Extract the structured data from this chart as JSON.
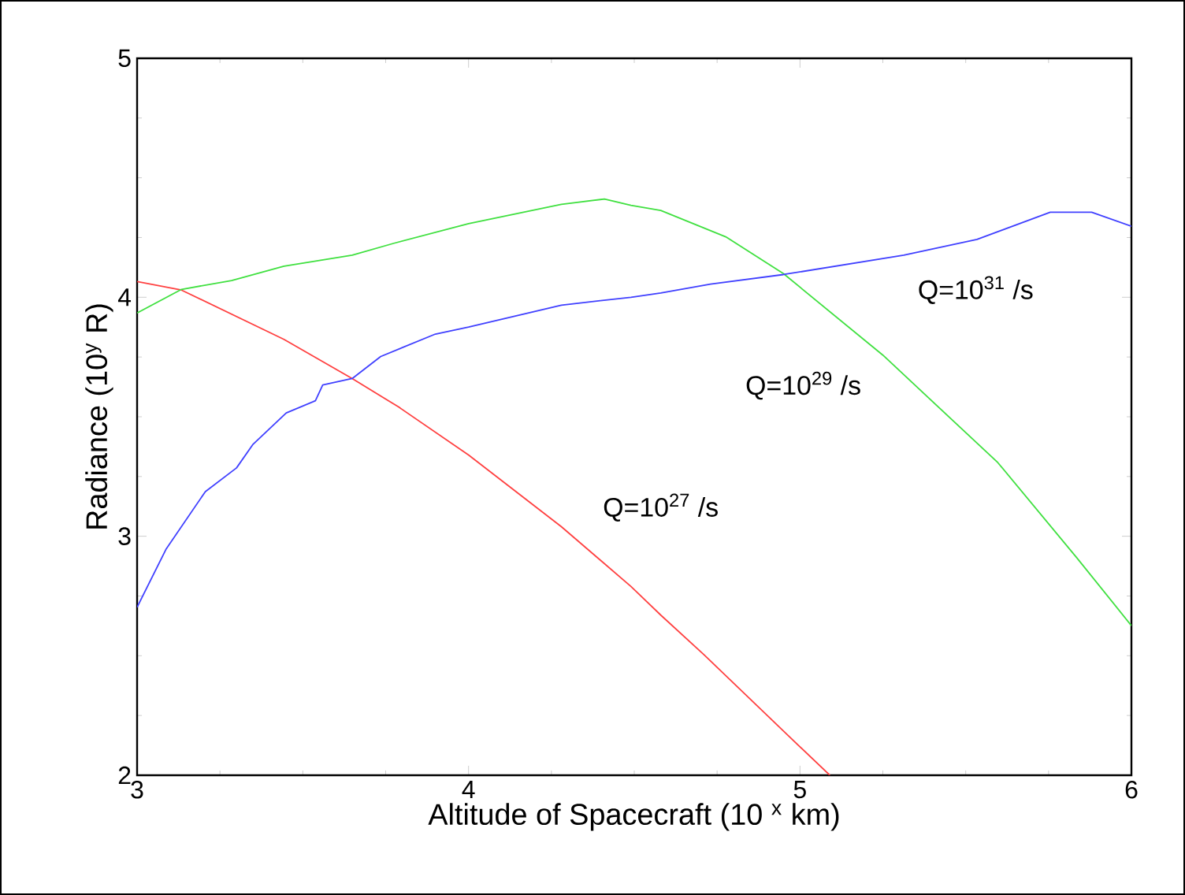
{
  "chart_data": {
    "type": "line",
    "xlabel": "Altitude of Spacecraft (10 $^{x}$ km)",
    "ylabel": "Radiance (10$^{y}$ R)",
    "xlim": [
      3,
      6
    ],
    "ylim": [
      2,
      5
    ],
    "xticks": [
      3,
      4,
      5,
      6
    ],
    "yticks": [
      2,
      3,
      4,
      5
    ],
    "grid": false,
    "series": [
      {
        "name": "Q=10$^{27}$ /s",
        "color": "#ff4040",
        "x": [
          3,
          3.134,
          3.443,
          3.649,
          3.79,
          4.0,
          4.28,
          4.49,
          4.58,
          4.71,
          4.965,
          5.09
        ],
        "values": [
          4.066,
          4.03,
          3.824,
          3.66,
          3.54,
          3.34,
          3.04,
          2.79,
          2.67,
          2.505,
          2.165,
          2.0
        ]
      },
      {
        "name": "Q=10$^{29}$ /s",
        "color": "#40e040",
        "x": [
          3,
          3.134,
          3.285,
          3.443,
          3.649,
          3.775,
          4.0,
          4.28,
          4.41,
          4.49,
          4.58,
          4.776,
          4.95,
          5.25,
          5.597,
          5.834,
          6.0
        ],
        "values": [
          3.934,
          4.033,
          4.07,
          4.13,
          4.176,
          4.226,
          4.308,
          4.389,
          4.411,
          4.385,
          4.363,
          4.253,
          4.099,
          3.758,
          3.308,
          2.912,
          2.626
        ]
      },
      {
        "name": "Q=10$^{31}$ /s",
        "color": "#4040ff",
        "x": [
          3,
          3.087,
          3.206,
          3.3,
          3.35,
          3.45,
          3.538,
          3.56,
          3.649,
          3.735,
          3.9,
          4.0,
          4.28,
          4.49,
          4.58,
          4.73,
          4.95,
          5.313,
          5.534,
          5.755,
          5.88,
          6.0
        ],
        "values": [
          2.703,
          2.945,
          3.187,
          3.286,
          3.385,
          3.516,
          3.567,
          3.633,
          3.66,
          3.752,
          3.846,
          3.875,
          3.967,
          4.0,
          4.018,
          4.055,
          4.095,
          4.176,
          4.242,
          4.356,
          4.356,
          4.297
        ]
      }
    ]
  }
}
